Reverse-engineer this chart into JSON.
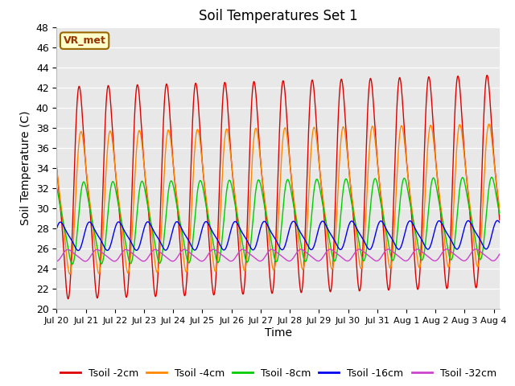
{
  "title": "Soil Temperatures Set 1",
  "ylabel": "Soil Temperature (C)",
  "xlabel": "Time",
  "ylim": [
    20,
    48
  ],
  "yticks": [
    20,
    22,
    24,
    26,
    28,
    30,
    32,
    34,
    36,
    38,
    40,
    42,
    44,
    46,
    48
  ],
  "bg_color": "#e8e8e8",
  "fig_color": "#ffffff",
  "annotation_text": "VR_met",
  "annotation_bg": "#ffffcc",
  "annotation_border": "#996600",
  "annotation_text_color": "#993300",
  "series": [
    {
      "label": "Tsoil -2cm",
      "color": "#dd0000",
      "mean": 31.5,
      "amp1": 9.5,
      "amp2": 2.5,
      "lag": 0.0,
      "trend_slope": 1.2
    },
    {
      "label": "Tsoil -4cm",
      "color": "#ff8800",
      "mean": 30.5,
      "amp1": 6.5,
      "amp2": 1.5,
      "lag": 0.06,
      "trend_slope": 0.8
    },
    {
      "label": "Tsoil -8cm",
      "color": "#00cc00",
      "mean": 28.5,
      "amp1": 3.8,
      "amp2": 0.8,
      "lag": 0.15,
      "trend_slope": 0.5
    },
    {
      "label": "Tsoil -16cm",
      "color": "#0000ee",
      "mean": 27.2,
      "amp1": 1.3,
      "amp2": 0.3,
      "lag": 0.35,
      "trend_slope": 0.15
    },
    {
      "label": "Tsoil -32cm",
      "color": "#cc44cc",
      "mean": 25.3,
      "amp1": 0.55,
      "amp2": 0.1,
      "lag": 0.6,
      "trend_slope": 0.05
    }
  ],
  "n_days": 15.2,
  "points_per_day": 144,
  "date_ticks_labels": [
    "Jul 20",
    "Jul 21",
    "Jul 22",
    "Jul 23",
    "Jul 24",
    "Jul 25",
    "Jul 26",
    "Jul 27",
    "Jul 28",
    "Jul 29",
    "Jul 30",
    "Jul 31",
    "Aug 1",
    "Aug 2",
    "Aug 3",
    "Aug 4"
  ],
  "linewidth": 1.0,
  "title_fontsize": 12,
  "axis_label_fontsize": 10,
  "tick_fontsize": 9,
  "legend_fontsize": 9
}
